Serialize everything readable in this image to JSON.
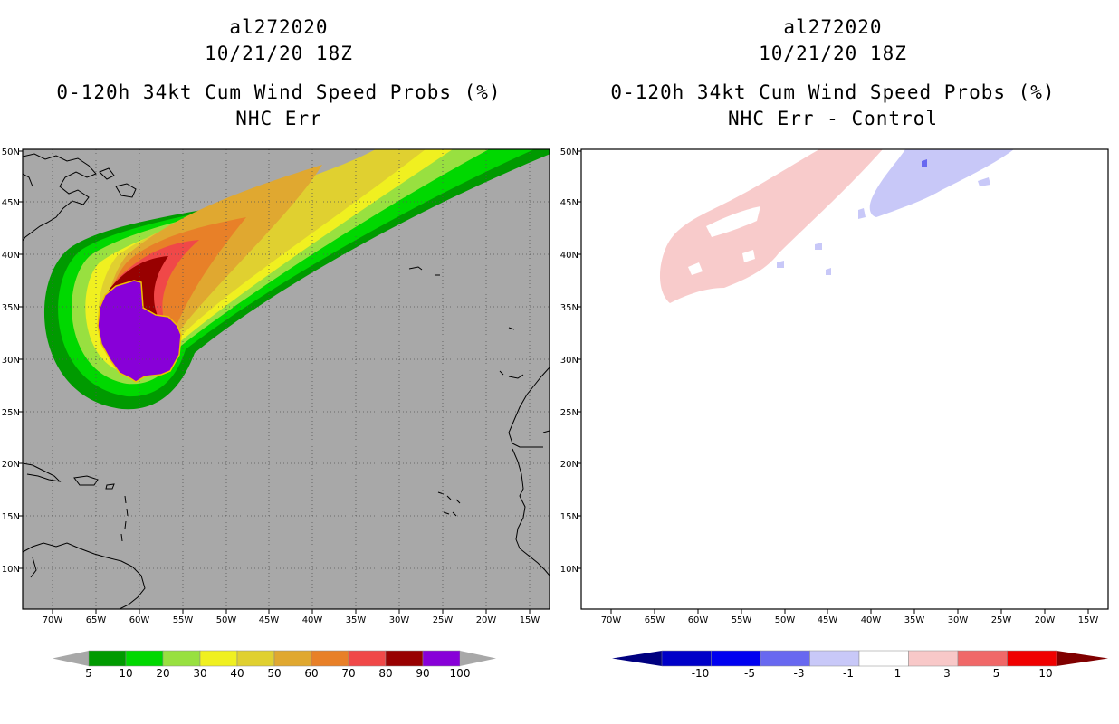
{
  "left_panel": {
    "title_line1": "al272020",
    "title_line2": "10/21/20 18Z",
    "title_line3": "0-120h 34kt Cum Wind Speed Probs (%)",
    "title_line4": "NHC Err"
  },
  "right_panel": {
    "title_line1": "al272020",
    "title_line2": "10/21/20 18Z",
    "title_line3": "0-120h 34kt Cum Wind Speed Probs (%)",
    "title_line4": "NHC Err - Control"
  },
  "axes": {
    "lon_labels": [
      "70W",
      "65W",
      "60W",
      "55W",
      "50W",
      "45W",
      "40W",
      "35W",
      "30W",
      "25W",
      "20W",
      "15W"
    ],
    "lat_labels": [
      "50N",
      "45N",
      "40N",
      "35N",
      "30N",
      "25N",
      "20N",
      "15N",
      "10N"
    ]
  },
  "left_colorbar": {
    "labels": [
      "5",
      "10",
      "20",
      "30",
      "40",
      "50",
      "60",
      "70",
      "80",
      "90",
      "100"
    ],
    "colors": [
      "#009a00",
      "#00d800",
      "#98e040",
      "#f0f020",
      "#e0d030",
      "#e0a830",
      "#e88028",
      "#f04848",
      "#980000",
      "#8800d8"
    ]
  },
  "right_colorbar": {
    "labels": [
      "-10",
      "-5",
      "-3",
      "-1",
      "1",
      "3",
      "5",
      "10"
    ],
    "colors": [
      "#0000c8",
      "#0000f0",
      "#6868f0",
      "#c8c8f8",
      "#ffffff",
      "#f8c8c8",
      "#f06868",
      "#f00000"
    ]
  },
  "colors": {
    "ocean_gray": "#a8a8a8",
    "prob_gt100": "#8800d8"
  }
}
